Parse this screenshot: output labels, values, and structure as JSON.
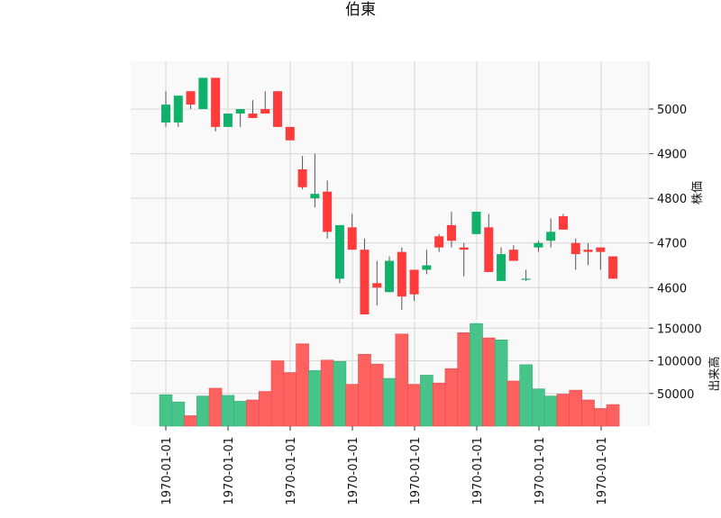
{
  "chart_data": {
    "type": "candlestick",
    "title": "伯東",
    "x_tick_labels": [
      "1970-01-01",
      "1970-01-01",
      "1970-01-01",
      "1970-01-01",
      "1970-01-01",
      "1970-01-01",
      "1970-01-01",
      "1970-01-01"
    ],
    "price_axis": {
      "label": "株価",
      "ylim": [
        4540,
        5095
      ],
      "ticks": [
        4600,
        4700,
        4800,
        4900,
        5000
      ],
      "tick_labels": [
        "4600",
        "4700",
        "4800",
        "4900",
        "5000"
      ]
    },
    "volume_axis": {
      "label": "出来高",
      "ylim": [
        0,
        160000
      ],
      "ticks": [
        50000,
        100000,
        150000
      ],
      "tick_labels": [
        "50000",
        "100000",
        "150000"
      ]
    },
    "colors": {
      "up": "#10b26b",
      "down": "#ff3b3b",
      "up_volume": "#47c48a",
      "down_volume": "#ff6060",
      "panel_bg": "#f9f9f9",
      "grid": "#d8d8d8"
    },
    "candles": [
      {
        "open": 4970,
        "high": 5040,
        "low": 4960,
        "close": 5010,
        "volume": 48000
      },
      {
        "open": 4970,
        "high": 5030,
        "low": 4960,
        "close": 5030,
        "volume": 37000
      },
      {
        "open": 5040,
        "high": 5040,
        "low": 5000,
        "close": 5010,
        "volume": 16000
      },
      {
        "open": 5000,
        "high": 5070,
        "low": 5000,
        "close": 5070,
        "volume": 46000
      },
      {
        "open": 5070,
        "high": 5070,
        "low": 4950,
        "close": 4960,
        "volume": 58000
      },
      {
        "open": 4960,
        "high": 4990,
        "low": 4960,
        "close": 4990,
        "volume": 47000
      },
      {
        "open": 4990,
        "high": 5000,
        "low": 4960,
        "close": 5000,
        "volume": 38000
      },
      {
        "open": 4990,
        "high": 5020,
        "low": 4980,
        "close": 4980,
        "volume": 40000
      },
      {
        "open": 5000,
        "high": 5040,
        "low": 4990,
        "close": 4990,
        "volume": 53000
      },
      {
        "open": 5040,
        "high": 5040,
        "low": 4960,
        "close": 4960,
        "volume": 100000
      },
      {
        "open": 4960,
        "high": 4960,
        "low": 4930,
        "close": 4930,
        "volume": 82000
      },
      {
        "open": 4865,
        "high": 4895,
        "low": 4820,
        "close": 4825,
        "volume": 126000
      },
      {
        "open": 4800,
        "high": 4900,
        "low": 4780,
        "close": 4810,
        "volume": 85000
      },
      {
        "open": 4815,
        "high": 4840,
        "low": 4710,
        "close": 4725,
        "volume": 101000
      },
      {
        "open": 4620,
        "high": 4740,
        "low": 4610,
        "close": 4740,
        "volume": 99000
      },
      {
        "open": 4735,
        "high": 4765,
        "low": 4685,
        "close": 4685,
        "volume": 64000
      },
      {
        "open": 4685,
        "high": 4710,
        "low": 4540,
        "close": 4540,
        "volume": 110000
      },
      {
        "open": 4610,
        "high": 4660,
        "low": 4560,
        "close": 4600,
        "volume": 95000
      },
      {
        "open": 4590,
        "high": 4670,
        "low": 4590,
        "close": 4660,
        "volume": 73000
      },
      {
        "open": 4680,
        "high": 4690,
        "low": 4550,
        "close": 4580,
        "volume": 141000
      },
      {
        "open": 4640,
        "high": 4640,
        "low": 4570,
        "close": 4585,
        "volume": 64000
      },
      {
        "open": 4640,
        "high": 4685,
        "low": 4630,
        "close": 4650,
        "volume": 78000
      },
      {
        "open": 4715,
        "high": 4720,
        "low": 4680,
        "close": 4690,
        "volume": 66000
      },
      {
        "open": 4740,
        "high": 4770,
        "low": 4690,
        "close": 4705,
        "volume": 88000
      },
      {
        "open": 4690,
        "high": 4700,
        "low": 4625,
        "close": 4685,
        "volume": 143000
      },
      {
        "open": 4720,
        "high": 4770,
        "low": 4720,
        "close": 4770,
        "volume": 157000
      },
      {
        "open": 4735,
        "high": 4765,
        "low": 4635,
        "close": 4635,
        "volume": 135000
      },
      {
        "open": 4615,
        "high": 4690,
        "low": 4615,
        "close": 4675,
        "volume": 132000
      },
      {
        "open": 4685,
        "high": 4695,
        "low": 4660,
        "close": 4660,
        "volume": 69000
      },
      {
        "open": 4620,
        "high": 4640,
        "low": 4615,
        "close": 4620,
        "volume": 94000
      },
      {
        "open": 4690,
        "high": 4705,
        "low": 4680,
        "close": 4700,
        "volume": 57000
      },
      {
        "open": 4705,
        "high": 4755,
        "low": 4690,
        "close": 4725,
        "volume": 46000
      },
      {
        "open": 4760,
        "high": 4765,
        "low": 4730,
        "close": 4730,
        "volume": 49000
      },
      {
        "open": 4700,
        "high": 4710,
        "low": 4640,
        "close": 4675,
        "volume": 55000
      },
      {
        "open": 4685,
        "high": 4700,
        "low": 4650,
        "close": 4680,
        "volume": 40000
      },
      {
        "open": 4690,
        "high": 4690,
        "low": 4640,
        "close": 4680,
        "volume": 27000
      },
      {
        "open": 4670,
        "high": 4670,
        "low": 4620,
        "close": 4620,
        "volume": 33000
      }
    ]
  }
}
